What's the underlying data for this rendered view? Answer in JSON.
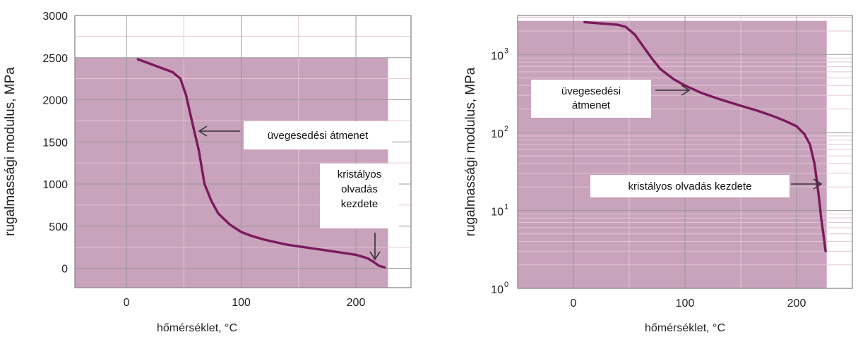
{
  "chart_data": [
    {
      "type": "area",
      "scale": "linear",
      "xlabel": "hőmérséklet, °C",
      "ylabel": "rugalmassági modulus, MPa",
      "xlim": [
        -45,
        248
      ],
      "ylim": [
        -230,
        3000
      ],
      "xticks": [
        0,
        100,
        200
      ],
      "yticks": [
        0,
        500,
        1000,
        1500,
        2000,
        2500,
        3000
      ],
      "shaded_region": {
        "x_end": 228,
        "y_top": 2500
      },
      "series": [
        {
          "x": [
            10,
            20,
            30,
            40,
            47,
            52,
            57,
            63,
            68,
            74,
            80,
            90,
            100,
            110,
            120,
            130,
            140,
            150,
            160,
            170,
            180,
            190,
            200,
            210,
            215,
            220,
            225
          ],
          "y": [
            2480,
            2430,
            2380,
            2330,
            2250,
            2050,
            1750,
            1400,
            1000,
            800,
            650,
            520,
            430,
            380,
            340,
            310,
            280,
            260,
            240,
            220,
            200,
            180,
            160,
            120,
            80,
            30,
            10
          ]
        }
      ],
      "annotations": [
        {
          "lines": [
            "üvegesedési átmenet"
          ],
          "x": 63,
          "y": 1650
        },
        {
          "lines": [
            "kristályos",
            "olvadás",
            "kezdete"
          ],
          "x": 220,
          "y": 80
        }
      ]
    },
    {
      "type": "area",
      "scale": "log",
      "xlabel": "hőmérséklet, °C",
      "ylabel": "rugalmassági modulus, MPa",
      "xlim": [
        -50,
        250
      ],
      "ylim": [
        1,
        3162
      ],
      "xticks": [
        0,
        100,
        200
      ],
      "yticks": [
        1,
        10,
        100,
        1000
      ],
      "ytick_labels": [
        {
          "base": "10",
          "exp": "0"
        },
        {
          "base": "10",
          "exp": "1"
        },
        {
          "base": "10",
          "exp": "2"
        },
        {
          "base": "10",
          "exp": "3"
        }
      ],
      "shaded_region": {
        "x_end": 227,
        "y_top": 2700
      },
      "series": [
        {
          "x": [
            10,
            25,
            40,
            47,
            55,
            62,
            70,
            78,
            90,
            100,
            115,
            130,
            150,
            165,
            180,
            190,
            200,
            207,
            212,
            216,
            218,
            220,
            222,
            224,
            226
          ],
          "y": [
            2600,
            2500,
            2400,
            2250,
            1800,
            1300,
            900,
            650,
            480,
            400,
            320,
            270,
            220,
            190,
            160,
            140,
            120,
            95,
            70,
            40,
            25,
            15,
            8,
            5,
            3
          ]
        }
      ],
      "annotations": [
        {
          "lines": [
            "üvegesedési",
            "átmenet"
          ],
          "x": 100,
          "y": 400
        },
        {
          "lines": [
            "kristályos olvadás kezdete"
          ],
          "x": 218,
          "y": 25
        }
      ]
    }
  ]
}
